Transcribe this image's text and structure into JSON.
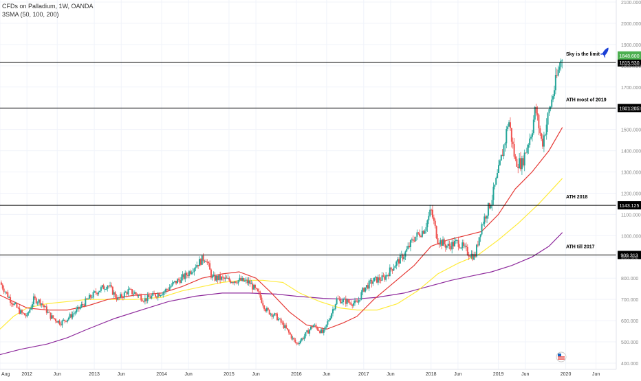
{
  "header": {
    "title": "CFDs on Palladium, 1W, OANDA",
    "indicator": "3SMA (50, 100, 200)"
  },
  "colors": {
    "up": "#26a69a",
    "down": "#ef5350",
    "sma50": "#e53935",
    "sma100": "#ffeb3b",
    "sma200": "#8e2a9c",
    "last_price_bg": "#4caf50",
    "level_bg": "#000000",
    "grid": "#f0f3fa"
  },
  "icons": {
    "rocket": "rocket-icon",
    "logo": "tradingview-logo-icon"
  },
  "chart_data": {
    "type": "candlestick",
    "ylim": [
      400,
      2100
    ],
    "x_tick_labels": [
      "Aug",
      "2012",
      "Jun",
      "2013",
      "Jun",
      "2014",
      "Jun",
      "2015",
      "Jun",
      "2016",
      "Jun",
      "2017",
      "Jun",
      "2018",
      "Jun",
      "2019",
      "Jun",
      "2020",
      "Jun"
    ],
    "y_tick_labels": [
      "400.000",
      "500.000",
      "600.000",
      "700.000",
      "800.000",
      "900.000",
      "1000.000",
      "1100.000",
      "1200.000",
      "1300.000",
      "1400.000",
      "1500.000",
      "1600.000",
      "1700.000",
      "1800.000",
      "1900.000",
      "2000.000",
      "2100.000"
    ],
    "last_price": "1848.600",
    "levels": [
      {
        "value": 1815.93,
        "label": "1815.930",
        "annotation": "Sky is the limit"
      },
      {
        "value": 1601.205,
        "label": "1601.205",
        "annotation": "ATH most of 2019"
      },
      {
        "value": 1143.125,
        "label": "1143.125",
        "annotation": "ATH 2018"
      },
      {
        "value": 909.313,
        "label": "909.313",
        "annotation": "ATH till 2017"
      }
    ],
    "price_path": [
      [
        2011.6,
        780
      ],
      [
        2011.75,
        700
      ],
      [
        2011.9,
        640
      ],
      [
        2012.0,
        620
      ],
      [
        2012.1,
        700
      ],
      [
        2012.2,
        690
      ],
      [
        2012.35,
        620
      ],
      [
        2012.5,
        590
      ],
      [
        2012.6,
        610
      ],
      [
        2012.75,
        650
      ],
      [
        2012.9,
        700
      ],
      [
        2013.05,
        740
      ],
      [
        2013.2,
        770
      ],
      [
        2013.35,
        700
      ],
      [
        2013.5,
        740
      ],
      [
        2013.6,
        730
      ],
      [
        2013.75,
        700
      ],
      [
        2013.9,
        720
      ],
      [
        2014.05,
        740
      ],
      [
        2014.2,
        780
      ],
      [
        2014.35,
        810
      ],
      [
        2014.5,
        860
      ],
      [
        2014.65,
        900
      ],
      [
        2014.75,
        800
      ],
      [
        2014.85,
        800
      ],
      [
        2015.0,
        790
      ],
      [
        2015.15,
        790
      ],
      [
        2015.3,
        780
      ],
      [
        2015.45,
        720
      ],
      [
        2015.55,
        650
      ],
      [
        2015.7,
        620
      ],
      [
        2015.85,
        560
      ],
      [
        2016.0,
        490
      ],
      [
        2016.1,
        520
      ],
      [
        2016.25,
        580
      ],
      [
        2016.4,
        540
      ],
      [
        2016.5,
        620
      ],
      [
        2016.6,
        700
      ],
      [
        2016.75,
        690
      ],
      [
        2016.9,
        680
      ],
      [
        2017.0,
        750
      ],
      [
        2017.15,
        790
      ],
      [
        2017.3,
        800
      ],
      [
        2017.45,
        860
      ],
      [
        2017.6,
        910
      ],
      [
        2017.75,
        990
      ],
      [
        2017.9,
        1030
      ],
      [
        2018.0,
        1120
      ],
      [
        2018.1,
        980
      ],
      [
        2018.25,
        950
      ],
      [
        2018.4,
        970
      ],
      [
        2018.55,
        920
      ],
      [
        2018.65,
        900
      ],
      [
        2018.75,
        1050
      ],
      [
        2018.9,
        1170
      ],
      [
        2019.0,
        1300
      ],
      [
        2019.1,
        1450
      ],
      [
        2019.15,
        1550
      ],
      [
        2019.25,
        1350
      ],
      [
        2019.35,
        1340
      ],
      [
        2019.5,
        1500
      ],
      [
        2019.55,
        1600
      ],
      [
        2019.65,
        1430
      ],
      [
        2019.75,
        1580
      ],
      [
        2019.85,
        1720
      ],
      [
        2019.9,
        1790
      ],
      [
        2019.95,
        1848
      ]
    ],
    "sma50": [
      [
        2011.6,
        720
      ],
      [
        2011.8,
        690
      ],
      [
        2012.0,
        660
      ],
      [
        2012.3,
        650
      ],
      [
        2012.6,
        650
      ],
      [
        2012.9,
        670
      ],
      [
        2013.2,
        700
      ],
      [
        2013.6,
        720
      ],
      [
        2014.0,
        730
      ],
      [
        2014.3,
        760
      ],
      [
        2014.6,
        800
      ],
      [
        2014.9,
        820
      ],
      [
        2015.15,
        830
      ],
      [
        2015.4,
        800
      ],
      [
        2015.6,
        740
      ],
      [
        2015.9,
        640
      ],
      [
        2016.15,
        580
      ],
      [
        2016.45,
        560
      ],
      [
        2016.7,
        590
      ],
      [
        2016.9,
        620
      ],
      [
        2017.15,
        700
      ],
      [
        2017.45,
        780
      ],
      [
        2017.75,
        860
      ],
      [
        2018.0,
        950
      ],
      [
        2018.25,
        980
      ],
      [
        2018.5,
        1000
      ],
      [
        2018.75,
        1020
      ],
      [
        2019.0,
        1100
      ],
      [
        2019.25,
        1220
      ],
      [
        2019.5,
        1300
      ],
      [
        2019.75,
        1400
      ],
      [
        2019.95,
        1510
      ]
    ],
    "sma100": [
      [
        2011.6,
        560
      ],
      [
        2011.8,
        620
      ],
      [
        2012.0,
        660
      ],
      [
        2012.3,
        680
      ],
      [
        2012.6,
        690
      ],
      [
        2012.9,
        700
      ],
      [
        2013.2,
        700
      ],
      [
        2013.6,
        700
      ],
      [
        2014.0,
        710
      ],
      [
        2014.3,
        740
      ],
      [
        2014.6,
        760
      ],
      [
        2014.9,
        780
      ],
      [
        2015.2,
        790
      ],
      [
        2015.5,
        790
      ],
      [
        2015.8,
        780
      ],
      [
        2016.05,
        730
      ],
      [
        2016.35,
        690
      ],
      [
        2016.65,
        660
      ],
      [
        2016.9,
        650
      ],
      [
        2017.2,
        650
      ],
      [
        2017.5,
        680
      ],
      [
        2017.8,
        740
      ],
      [
        2018.1,
        820
      ],
      [
        2018.4,
        870
      ],
      [
        2018.7,
        910
      ],
      [
        2019.0,
        980
      ],
      [
        2019.3,
        1060
      ],
      [
        2019.6,
        1150
      ],
      [
        2019.95,
        1270
      ]
    ],
    "sma200": [
      [
        2011.6,
        440
      ],
      [
        2011.9,
        465
      ],
      [
        2012.3,
        490
      ],
      [
        2012.6,
        520
      ],
      [
        2012.9,
        560
      ],
      [
        2013.3,
        610
      ],
      [
        2013.7,
        650
      ],
      [
        2014.1,
        690
      ],
      [
        2014.5,
        715
      ],
      [
        2014.9,
        730
      ],
      [
        2015.3,
        730
      ],
      [
        2015.7,
        725
      ],
      [
        2016.0,
        715
      ],
      [
        2016.4,
        705
      ],
      [
        2016.8,
        700
      ],
      [
        2017.2,
        710
      ],
      [
        2017.6,
        730
      ],
      [
        2017.95,
        760
      ],
      [
        2018.3,
        790
      ],
      [
        2018.6,
        810
      ],
      [
        2018.9,
        830
      ],
      [
        2019.2,
        860
      ],
      [
        2019.5,
        900
      ],
      [
        2019.75,
        950
      ],
      [
        2019.95,
        1015
      ]
    ]
  }
}
